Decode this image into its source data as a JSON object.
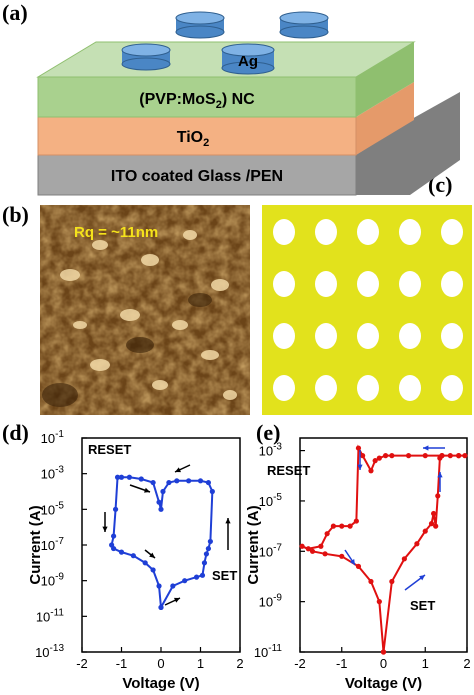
{
  "figure": {
    "labels": {
      "a": "(a)",
      "b": "(b)",
      "c": "(c)",
      "d": "(d)",
      "e": "(e)"
    },
    "device": {
      "top_electrode": "Ag",
      "layer1": "(PVP:MoS",
      "layer1_sub": "2",
      "layer1_tail": ") NC",
      "layer2": "TiO",
      "layer2_sub": "2",
      "substrate": "ITO coated Glass /PEN",
      "colors": {
        "ag": "#5b9bd5",
        "nc": "#a9d18e",
        "tio2": "#f4b183",
        "substrate": "#a6a6a6"
      }
    },
    "afm": {
      "label": "Rq = ~11nm"
    },
    "optical": {
      "rows": 4,
      "cols": 5,
      "background": "#e6e619"
    }
  },
  "chart_data": [
    {
      "type": "line",
      "panel": "d",
      "xlabel": "Voltage (V)",
      "ylabel": "Current (A)",
      "xlim": [
        -2,
        2
      ],
      "ylim_exponent": [
        -13,
        -1
      ],
      "x_ticks": [
        "-2",
        "-1",
        "0",
        "1",
        "2"
      ],
      "y_tick_exponents": [
        -1,
        -3,
        -5,
        -7,
        -9,
        -11,
        -13
      ],
      "y_tick_base": "10",
      "annotations": [
        "RESET",
        "SET"
      ],
      "color": "#1f3fd6",
      "series": [
        {
          "x": [
            0.0,
            0.3,
            0.6,
            0.9,
            1.05,
            1.1,
            1.15,
            1.2,
            1.25,
            1.3,
            1.2,
            1.0,
            0.7,
            0.4,
            0.2,
            0.05,
            0.0,
            -0.05,
            -0.2,
            -0.5,
            -0.8,
            -1.0,
            -1.1,
            -1.15,
            -1.2,
            -1.25,
            -1.2,
            -1.0,
            -0.7,
            -0.4,
            -0.2,
            -0.05,
            0.0
          ],
          "log10_y": [
            -10.5,
            -9.3,
            -9.0,
            -8.8,
            -8.7,
            -8.0,
            -7.5,
            -7.2,
            -6.8,
            -4.0,
            -3.5,
            -3.4,
            -3.4,
            -3.4,
            -3.5,
            -4.0,
            -5.0,
            -4.6,
            -3.5,
            -3.3,
            -3.2,
            -3.2,
            -3.2,
            -5.0,
            -6.5,
            -7.0,
            -7.2,
            -7.4,
            -7.6,
            -8.0,
            -8.4,
            -9.3,
            -10.5
          ]
        }
      ]
    },
    {
      "type": "line",
      "panel": "e",
      "xlabel": "Voltage (V)",
      "ylabel": "Current (A)",
      "xlim": [
        -2,
        2
      ],
      "ylim_exponent": [
        -11,
        -2.5
      ],
      "x_ticks": [
        "-2",
        "-1",
        "0",
        "1",
        "2"
      ],
      "y_tick_exponents": [
        -3,
        -5,
        -7,
        -9,
        -11
      ],
      "y_tick_base": "10",
      "annotations": [
        "RESET",
        "SET"
      ],
      "color": "#e01010",
      "series": [
        {
          "x": [
            0.0,
            0.2,
            0.5,
            0.8,
            1.0,
            1.15,
            1.2,
            1.25,
            1.3,
            1.35,
            1.4,
            1.6,
            1.8,
            1.95,
            1.8,
            1.4,
            1.0,
            0.6,
            0.2,
            0.05,
            -0.1,
            -0.2,
            -0.3,
            -0.5,
            -0.6,
            -0.65,
            -0.8,
            -1.0,
            -1.2,
            -1.35,
            -1.5,
            -1.8,
            -1.95,
            -1.7,
            -1.4,
            -1.0,
            -0.6,
            -0.3,
            -0.1,
            0.0
          ],
          "log10_y": [
            -11.0,
            -8.2,
            -7.3,
            -6.7,
            -6.2,
            -5.9,
            -5.5,
            -6.0,
            -4.8,
            -3.3,
            -3.2,
            -3.2,
            -3.2,
            -3.2,
            -3.2,
            -3.2,
            -3.2,
            -3.2,
            -3.2,
            -3.2,
            -3.3,
            -3.4,
            -3.8,
            -3.2,
            -2.9,
            -5.8,
            -6.0,
            -6.0,
            -6.0,
            -6.3,
            -6.8,
            -6.9,
            -6.8,
            -7.0,
            -7.1,
            -7.2,
            -7.6,
            -8.2,
            -9.0,
            -11.0
          ]
        }
      ]
    }
  ]
}
